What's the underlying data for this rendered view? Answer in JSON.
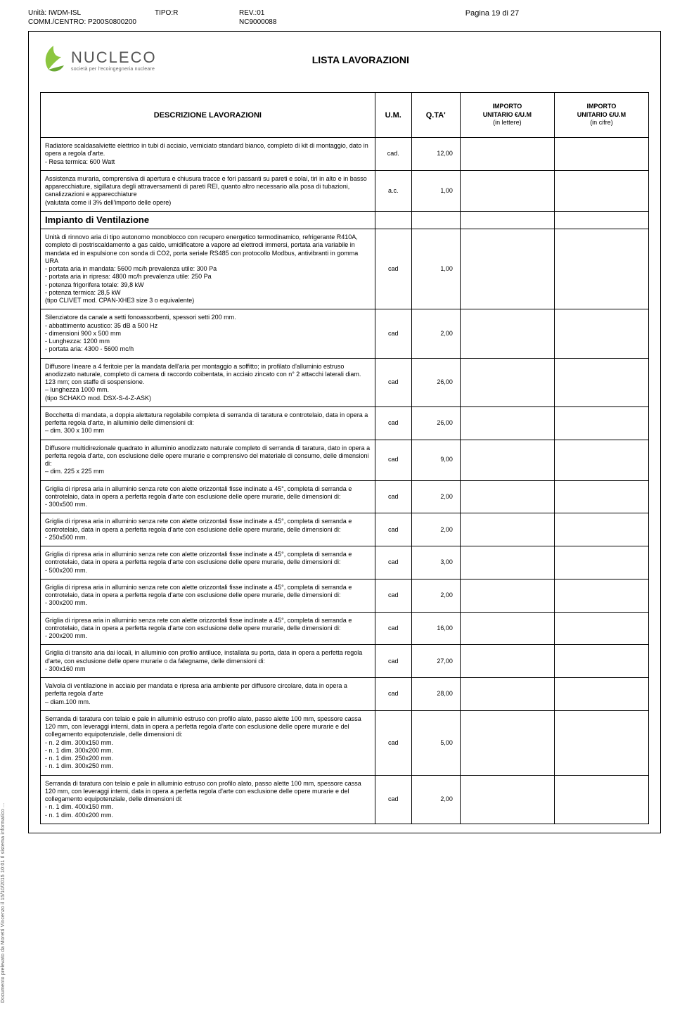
{
  "header": {
    "unit_label": "Unità:",
    "unit_val": "IWDM-ISL",
    "comm_label": "COMM./CENTRO:",
    "comm_val": "P200S0800200",
    "tipo_label": "TIPO:R",
    "rev_label": "REV.:01",
    "nc_label": "NC9000088",
    "page_label": "Pagina 19 di 27"
  },
  "logo": {
    "name": "NUCLECO",
    "sub": "società per l'ecoingegneria nucleare",
    "green1": "#8cc63f",
    "green2": "#6aa934"
  },
  "title": "LISTA LAVORAZIONI",
  "columns": {
    "desc": "DESCRIZIONE  LAVORAZIONI",
    "um": "U.M.",
    "qta": "Q.TA'",
    "imp1_l1": "IMPORTO",
    "imp1_l2": "UNITARIO  €/U.M",
    "imp1_l3": "(in lettere)",
    "imp2_l1": "IMPORTO",
    "imp2_l2": "UNITARIO  €/U.M",
    "imp2_l3": "(in cifre)"
  },
  "section_label": "Impianto di Ventilazione",
  "rows": [
    {
      "desc": "Radiatore scaldasalviette elettrico in tubi di acciaio, verniciato standard bianco, completo di kit di montaggio,  dato in opera a regola d'arte.\n- Resa termica: 600 Watt",
      "um": "cad.",
      "qta": "12,00"
    },
    {
      "desc": "Assistenza muraria, comprensiva di apertura e chiusura tracce e fori passanti su pareti e solai, tiri in alto e in basso apparecchiature, sigillatura degli attraversamenti di pareti REI, quanto altro necessario alla posa di tubazioni, canalizzazioni e apparecchiature\n(valutata come il 3% dell'importo delle opere)",
      "um": "a.c.",
      "qta": "1,00"
    },
    {
      "section": true
    },
    {
      "desc": "Unità di rinnovo aria di tipo autonomo monoblocco con recupero energetico termodinamico, refrigerante R410A, completo di postriscaldamento a gas caldo, umidificatore a vapore ad elettrodi immersi, portata aria variabile in mandata ed in espulsione con sonda di CO2, porta seriale RS485 con protocollo Modbus, antivibranti in gomma\nURA\n- portata aria in mandata: 5600 mc/h prevalenza utile: 300 Pa\n- portata aria in ripresa: 4800 mc/h prevalenza utile: 250 Pa\n- potenza frigorifera totale: 39,8 kW\n- potenza termica: 28,5 kW\n(tipo CLIVET mod. CPAN-XHE3 size 3 o equivalente)",
      "um": "cad",
      "qta": "1,00"
    },
    {
      "desc": "Silenziatore da canale a setti fonoassorbenti, spessori setti 200 mm.\n- abbattimento acustico: 35 dB a 500 Hz\n- dimensioni 900 x 500 mm\n- Lunghezza: 1200 mm\n- portata aria: 4300 - 5600 mc/h",
      "um": "cad",
      "qta": "2,00"
    },
    {
      "desc": "Diffusore lineare a 4 feritoie per la mandata dell'aria per montaggio a soffitto; in profilato d'alluminio estruso anodizzato naturale, completo di camera di raccordo coibentata, in acciaio zincato con n° 2 attacchi laterali diam. 123 mm; con staffe di sospensione.\n– lunghezza 1000 mm.\n(tipo SCHAKO mod. DSX-S-4-Z-ASK)",
      "um": "cad",
      "qta": "26,00"
    },
    {
      "desc": "Bocchetta di mandata, a doppia alettatura regolabile completa di serranda di taratura e controtelaio, data in opera a perfetta regola d'arte, in alluminio delle dimensioni di:\n– dim. 300 x 100 mm",
      "um": "cad",
      "qta": "26,00"
    },
    {
      "desc": "Diffusore multidirezionale quadrato in alluminio anodizzato naturale completo di serranda di taratura, dato in opera a perfetta regola d'arte, con esclusione delle opere murarie e comprensivo del materiale di consumo, delle dimensioni di:\n– dim. 225 x 225 mm",
      "um": "cad",
      "qta": "9,00"
    },
    {
      "desc": "Griglia di ripresa aria in alluminio senza rete con alette orizzontali fisse inclinate a 45°, completa di serranda e controtelaio, data in opera a perfetta regola d'arte con esclusione delle opere murarie, delle dimensioni di:\n- 300x500 mm.",
      "um": "cad",
      "qta": "2,00"
    },
    {
      "desc": "Griglia di ripresa aria in alluminio senza rete con alette orizzontali fisse inclinate a 45°, completa di serranda e controtelaio, data in opera a perfetta regola d'arte con esclusione delle opere murarie, delle dimensioni di:\n- 250x500 mm.",
      "um": "cad",
      "qta": "2,00"
    },
    {
      "desc": "Griglia di ripresa aria in alluminio senza rete con alette orizzontali fisse inclinate a 45°, completa di serranda e controtelaio, data in opera a perfetta regola d'arte con esclusione delle opere murarie, delle dimensioni di:\n- 500x200 mm.",
      "um": "cad",
      "qta": "3,00"
    },
    {
      "desc": "Griglia di ripresa aria in alluminio senza rete con alette orizzontali fisse inclinate a 45°, completa di serranda e controtelaio, data in opera a perfetta regola d'arte con esclusione delle opere murarie, delle dimensioni di:\n- 300x200 mm.",
      "um": "cad",
      "qta": "2,00"
    },
    {
      "desc": "Griglia di ripresa aria in alluminio senza rete con alette orizzontali fisse inclinate a 45°, completa di serranda e controtelaio, data in opera a perfetta regola d'arte con esclusione delle opere murarie, delle dimensioni di:\n- 200x200 mm.",
      "um": "cad",
      "qta": "16,00"
    },
    {
      "desc": "Griglia di transito aria dai locali, in alluminio con profilo antiluce, installata su porta, data in opera a perfetta regola d'arte, con esclusione delle opere murarie o da falegname, delle dimensioni di:\n- 300x160 mm",
      "um": "cad",
      "qta": "27,00"
    },
    {
      "desc": "Valvola di ventilazione in acciaio per mandata e ripresa aria ambiente per diffusore circolare, data in opera a perfetta regola d'arte\n– diam.100 mm.",
      "um": "cad",
      "qta": "28,00"
    },
    {
      "desc": "Serranda di taratura con telaio e pale in alluminio estruso con profilo alato, passo alette 100 mm, spessore cassa 120 mm, con leveraggi interni, data in opera a perfetta regola d'arte con esclusione delle opere murarie e del collegamento equipotenziale, delle dimensioni di:\n- n. 2 dim. 300x150 mm.\n- n. 1 dim. 300x200 mm.\n- n. 1 dim. 250x200 mm.\n- n. 1 dim. 300x250 mm.",
      "um": "cad",
      "qta": "5,00"
    },
    {
      "desc": "Serranda di taratura con telaio e pale in alluminio estruso con profilo alato, passo alette 100 mm, spessore cassa 120 mm, con leveraggi interni, data in opera a perfetta regola d'arte con esclusione delle opere murarie e del collegamento equipotenziale, delle dimensioni di:\n- n. 1 dim. 400x150 mm.\n- n. 1 dim. 400x200 mm.",
      "um": "cad",
      "qta": "2,00"
    }
  ],
  "side_note": "Documento prelevato da Moretti Vincenzo il 15/10/2015 10:01\nIl sistema informatico ..."
}
